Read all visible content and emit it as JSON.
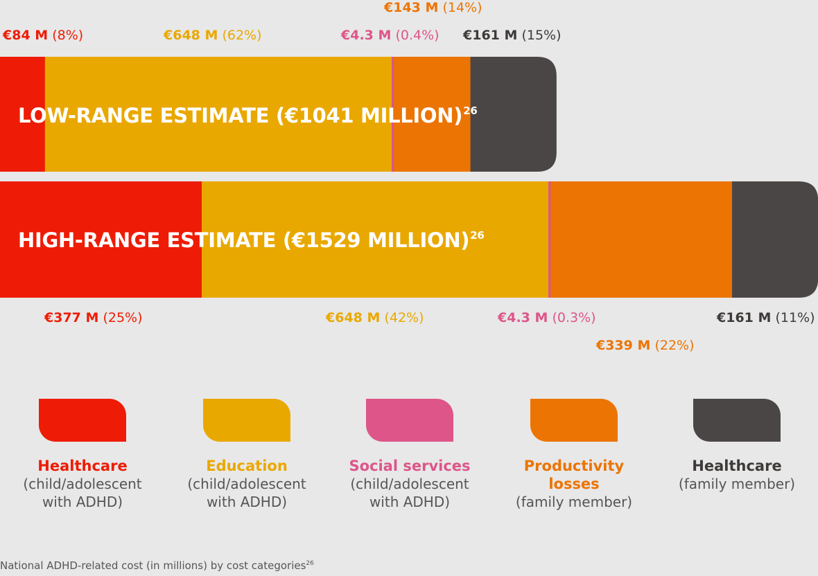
{
  "colors": {
    "healthcare_child": "#ee1c06",
    "education": "#e9a800",
    "social_services": "#dd5589",
    "productivity": "#ec7403",
    "healthcare_family": "#4a4645"
  },
  "chart_data": {
    "type": "bar",
    "orientation": "horizontal-stacked",
    "categories": [
      "LOW-RANGE ESTIMATE (€1041 MILLION)",
      "HIGH-RANGE ESTIMATE (€1529 MILLION)"
    ],
    "series": [
      {
        "name": "Healthcare (child/adolescent with ADHD)",
        "values": [
          84,
          377
        ],
        "percent": [
          "8%",
          "25%"
        ]
      },
      {
        "name": "Education (child/adolescent with ADHD)",
        "values": [
          648,
          648
        ],
        "percent": [
          "62%",
          "42%"
        ]
      },
      {
        "name": "Social services (child/adolescent with ADHD)",
        "values": [
          4.3,
          4.3
        ],
        "percent": [
          "0.4%",
          "0.3%"
        ]
      },
      {
        "name": "Productivity losses (family member)",
        "values": [
          143,
          339
        ],
        "percent": [
          "14%",
          "22%"
        ]
      },
      {
        "name": "Healthcare (family member)",
        "values": [
          161,
          161
        ],
        "percent": [
          "15%",
          "11%"
        ]
      }
    ],
    "xlim": [
      0,
      1529
    ]
  },
  "bars": [
    {
      "title": "LOW-RANGE ESTIMATE (€1041 MILLION)",
      "sup": "26"
    },
    {
      "title": "HIGH-RANGE ESTIMATE (€1529 MILLION)",
      "sup": "26"
    }
  ],
  "labels": {
    "low": [
      {
        "amt": "€84 M",
        "pct": "(8%)"
      },
      {
        "amt": "€648 M",
        "pct": "(62%)"
      },
      {
        "amt": "€4.3 M",
        "pct": "(0.4%)"
      },
      {
        "amt": "€143 M",
        "pct": "(14%)"
      },
      {
        "amt": "€161 M",
        "pct": "(15%)"
      }
    ],
    "high": [
      {
        "amt": "€377 M",
        "pct": "(25%)"
      },
      {
        "amt": "€648 M",
        "pct": "(42%)"
      },
      {
        "amt": "€4.3 M",
        "pct": "(0.3%)"
      },
      {
        "amt": "€339 M",
        "pct": "(22%)"
      },
      {
        "amt": "€161 M",
        "pct": "(11%)"
      }
    ]
  },
  "legend": [
    {
      "name": "Healthcare",
      "sub": "(child/adolescent with ADHD)",
      "color_key": "healthcare_child"
    },
    {
      "name": "Education",
      "sub": "(child/adolescent with ADHD)",
      "color_key": "education"
    },
    {
      "name": "Social services",
      "sub": "(child/adolescent with ADHD)",
      "color_key": "social_services"
    },
    {
      "name": "Productivity losses",
      "sub": "(family member)",
      "color_key": "productivity"
    },
    {
      "name": "Healthcare",
      "sub": "(family member)",
      "color_key": "healthcare_family"
    }
  ],
  "footnote": {
    "text": "National ADHD-related cost (in millions) by cost categories",
    "sup": "26"
  }
}
